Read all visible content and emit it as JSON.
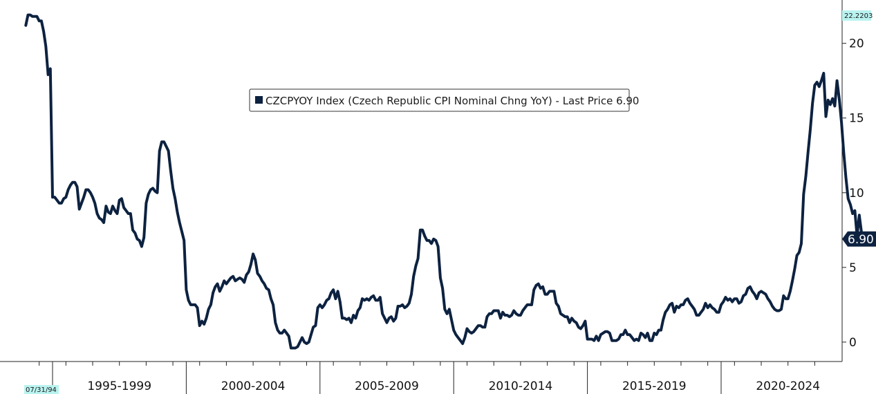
{
  "chart_data": {
    "type": "line",
    "legend": {
      "text": "CZCPYOY Index (Czech Republic CPI Nominal Chng YoY) - Last Price 6.90",
      "placement": "top-center"
    },
    "y_axis": {
      "side": "right",
      "range": [
        -1.3,
        22.9
      ],
      "ticks": [
        0,
        5,
        10,
        15,
        20
      ],
      "max_tag": "22.2203",
      "last_price_tag": "6.90"
    },
    "x_axis": {
      "start_tag": "07/31/94",
      "periods": [
        "1995-1999",
        "2000-2004",
        "2005-2009",
        "2010-2014",
        "2015-2019",
        "2020-2024"
      ]
    },
    "grid": false,
    "colors": {
      "line": "#0d2240",
      "tag_bg": "#b9f3f0",
      "last_price_bg": "#0d2240",
      "axis": "#222222"
    },
    "series": [
      {
        "frequency": "monthly",
        "start": "1994-01",
        "values": [
          21.2,
          21.9,
          21.9,
          21.8,
          21.8,
          21.8,
          21.5,
          21.5,
          20.8,
          19.8,
          17.9,
          18.3,
          9.7,
          9.7,
          9.5,
          9.3,
          9.3,
          9.6,
          9.7,
          10.2,
          10.5,
          10.7,
          10.7,
          10.4,
          8.9,
          9.3,
          9.7,
          10.2,
          10.2,
          10.0,
          9.7,
          9.3,
          8.6,
          8.3,
          8.2,
          8.0,
          9.1,
          8.7,
          8.6,
          9.1,
          8.8,
          8.6,
          9.5,
          9.6,
          9.0,
          8.8,
          8.6,
          8.6,
          7.5,
          7.3,
          6.9,
          6.8,
          6.4,
          7.0,
          9.3,
          9.9,
          10.2,
          10.3,
          10.1,
          10.0,
          12.8,
          13.4,
          13.4,
          13.1,
          12.8,
          11.5,
          10.3,
          9.6,
          8.7,
          8.0,
          7.4,
          6.8,
          3.5,
          2.8,
          2.5,
          2.5,
          2.5,
          2.3,
          1.1,
          1.4,
          1.2,
          1.6,
          2.2,
          2.5,
          3.3,
          3.7,
          3.9,
          3.4,
          3.7,
          4.1,
          3.9,
          4.1,
          4.3,
          4.4,
          4.1,
          4.2,
          4.3,
          4.2,
          4.0,
          4.5,
          4.7,
          5.2,
          5.9,
          5.5,
          4.6,
          4.4,
          4.1,
          3.9,
          3.6,
          3.5,
          2.9,
          2.5,
          1.3,
          0.8,
          0.6,
          0.6,
          0.8,
          0.6,
          0.4,
          -0.4,
          -0.4,
          -0.4,
          -0.3,
          0.0,
          0.3,
          0.0,
          -0.1,
          0.0,
          0.5,
          1.0,
          1.1,
          2.3,
          2.5,
          2.3,
          2.5,
          2.8,
          2.9,
          3.3,
          3.5,
          2.9,
          3.4,
          2.7,
          1.6,
          1.6,
          1.5,
          1.6,
          1.3,
          1.8,
          1.6,
          2.1,
          2.3,
          2.9,
          2.8,
          2.9,
          2.8,
          3.0,
          3.1,
          2.8,
          2.8,
          3.0,
          1.9,
          1.6,
          1.3,
          1.6,
          1.7,
          1.4,
          1.6,
          2.4,
          2.4,
          2.5,
          2.3,
          2.4,
          2.6,
          3.2,
          4.4,
          5.1,
          5.6,
          7.5,
          7.5,
          7.1,
          6.8,
          6.8,
          6.6,
          6.9,
          6.8,
          6.4,
          4.3,
          3.6,
          2.2,
          1.9,
          2.2,
          1.5,
          0.8,
          0.5,
          0.3,
          0.1,
          -0.1,
          0.3,
          0.9,
          0.7,
          0.6,
          0.7,
          0.9,
          1.1,
          1.1,
          1.0,
          1.0,
          1.7,
          1.9,
          1.9,
          2.1,
          2.1,
          2.1,
          1.6,
          2.0,
          1.8,
          1.8,
          1.7,
          1.8,
          2.1,
          1.9,
          1.8,
          1.8,
          2.1,
          2.3,
          2.5,
          2.5,
          2.5,
          3.5,
          3.8,
          3.9,
          3.6,
          3.7,
          3.2,
          3.2,
          3.4,
          3.4,
          3.4,
          2.6,
          2.4,
          1.9,
          1.8,
          1.7,
          1.7,
          1.3,
          1.6,
          1.4,
          1.3,
          1.0,
          0.9,
          1.1,
          1.4,
          0.2,
          0.2,
          0.2,
          0.1,
          0.4,
          0.1,
          0.5,
          0.6,
          0.7,
          0.7,
          0.6,
          0.1,
          0.1,
          0.1,
          0.2,
          0.5,
          0.5,
          0.8,
          0.5,
          0.5,
          0.3,
          0.1,
          0.2,
          0.1,
          0.6,
          0.5,
          0.3,
          0.6,
          0.1,
          0.1,
          0.6,
          0.5,
          0.8,
          0.8,
          1.5,
          2.0,
          2.2,
          2.5,
          2.6,
          2.0,
          2.4,
          2.3,
          2.5,
          2.5,
          2.8,
          2.9,
          2.6,
          2.4,
          2.2,
          1.8,
          1.8,
          2.0,
          2.2,
          2.6,
          2.3,
          2.5,
          2.3,
          2.2,
          2.0,
          2.0,
          2.5,
          2.7,
          3.0,
          2.8,
          2.9,
          2.7,
          2.9,
          2.9,
          2.6,
          2.7,
          3.1,
          3.2,
          3.6,
          3.7,
          3.4,
          3.2,
          2.9,
          3.3,
          3.4,
          3.3,
          3.2,
          2.9,
          2.7,
          2.4,
          2.2,
          2.1,
          2.1,
          2.2,
          3.1,
          2.9,
          2.9,
          3.4,
          4.1,
          4.9,
          5.8,
          6.0,
          6.6,
          9.9,
          11.1,
          12.7,
          14.2,
          16.0,
          17.2,
          17.4,
          17.1,
          17.5,
          18.0,
          15.1,
          16.2,
          15.9,
          16.3,
          15.8,
          17.5,
          16.3,
          14.7,
          12.7,
          11.0,
          9.6,
          9.2,
          8.6,
          8.8,
          7.1,
          8.5,
          7.3,
          6.9
        ]
      }
    ]
  }
}
